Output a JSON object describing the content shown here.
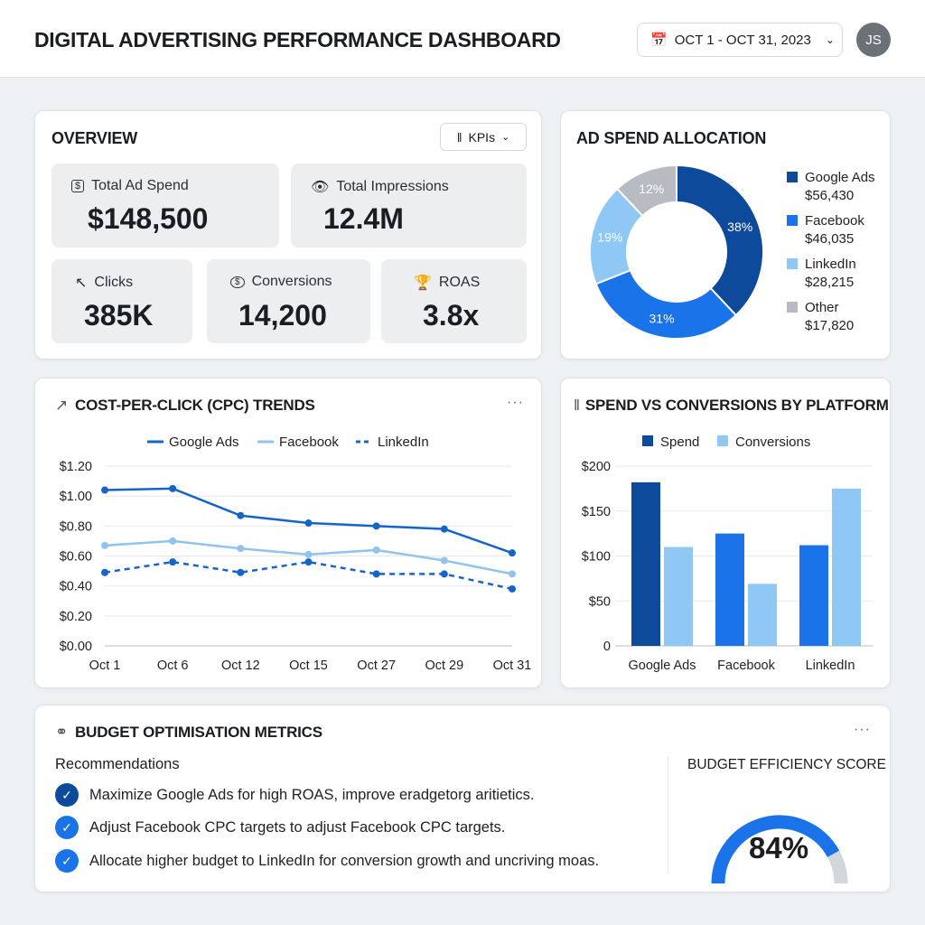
{
  "header": {
    "title": "DIGITAL ADVERTISING PERFORMANCE DASHBOARD",
    "date_range": "OCT 1 - OCT 31, 2023",
    "avatar": "JS"
  },
  "overview": {
    "title": "OVERVIEW",
    "kpi_button": "KPIs",
    "kpis": [
      {
        "label": "Total Ad Spend",
        "value": "$148,500",
        "icon": "dollar-icon"
      },
      {
        "label": "Total Impressions",
        "value": "12.4M",
        "icon": "eye-icon"
      },
      {
        "label": "Clicks",
        "value": "385K",
        "icon": "cursor-click-icon"
      },
      {
        "label": "Conversions",
        "value": "14,200",
        "icon": "dollar-cycle-icon"
      },
      {
        "label": "ROAS",
        "value": "3.8x",
        "icon": "trophy-icon"
      }
    ]
  },
  "allocation": {
    "title": "AD SPEND ALLOCATION",
    "chart_data": {
      "type": "pie",
      "donut": true,
      "slices": [
        {
          "name": "Google Ads",
          "amount": "$56,430",
          "percent": 38,
          "label": "38%",
          "color": "#0d4a9c"
        },
        {
          "name": "Facebook",
          "amount": "$46,035",
          "percent": 31,
          "label": "31%",
          "color": "#1a73e8"
        },
        {
          "name": "LinkedIn",
          "amount": "$28,215",
          "percent": 19,
          "label": "19%",
          "color": "#90c8f5"
        },
        {
          "name": "Other",
          "amount": "$17,820",
          "percent": 12,
          "label": "12%",
          "color": "#b8bcc2"
        }
      ],
      "legend": "right"
    }
  },
  "cpc": {
    "title": "COST-PER-CLICK (CPC) TRENDS",
    "chart_data": {
      "type": "line",
      "categories": [
        "Oct 1",
        "Oct 6",
        "Oct 12",
        "Oct 15",
        "Oct 27",
        "Oct 29",
        "Oct 31"
      ],
      "yticks": [
        "$0.00",
        "$0.20",
        "$0.40",
        "$0.60",
        "$0.80",
        "$1.00",
        "$1.20"
      ],
      "ylim": [
        0,
        1.2
      ],
      "grid": true,
      "legend": "top",
      "series": [
        {
          "name": "Google Ads",
          "values": [
            1.04,
            1.05,
            0.87,
            0.82,
            0.8,
            0.78,
            0.62
          ],
          "color": "#1565c8",
          "dashed": false
        },
        {
          "name": "Facebook",
          "values": [
            0.67,
            0.7,
            0.65,
            0.61,
            0.64,
            0.57,
            0.48
          ],
          "color": "#90c4ee",
          "dashed": false
        },
        {
          "name": "LinkedIn",
          "values": [
            0.49,
            0.56,
            0.49,
            0.56,
            0.48,
            0.48,
            0.38
          ],
          "color": "#1565c8",
          "dashed": true
        }
      ]
    }
  },
  "spend_conv": {
    "title": "SPEND VS CONVERSIONS BY PLATFORM",
    "chart_data": {
      "type": "bar",
      "categories": [
        "Google Ads",
        "Facebook",
        "LinkedIn"
      ],
      "yticks": [
        "0",
        "$50",
        "$100",
        "$150",
        "$200"
      ],
      "ylim": [
        0,
        200
      ],
      "grid": true,
      "legend": "top",
      "series": [
        {
          "name": "Spend",
          "values": [
            182,
            125,
            112
          ],
          "colors": [
            "#0d4a9c",
            "#1a73e8",
            "#1a73e8"
          ]
        },
        {
          "name": "Conversions",
          "values": [
            110,
            69,
            175
          ],
          "colors": [
            "#90c8f5",
            "#90c8f5",
            "#90c8f5"
          ]
        }
      ]
    }
  },
  "budget": {
    "title": "BUDGET OPTIMISATION METRICS",
    "recommendations_label": "Recommendations",
    "recommendations": [
      "Maximize Google Ads for high ROAS, improve eradgetorg aritietics.",
      "Adjust Facebook CPC targets to adjust Facebook CPC targets.",
      "Allocate higher budget to LinkedIn for conversion growth and uncriving moas."
    ],
    "score_label": "BUDGET EFFICIENCY SCORE",
    "score": 84,
    "score_text": "84%"
  }
}
